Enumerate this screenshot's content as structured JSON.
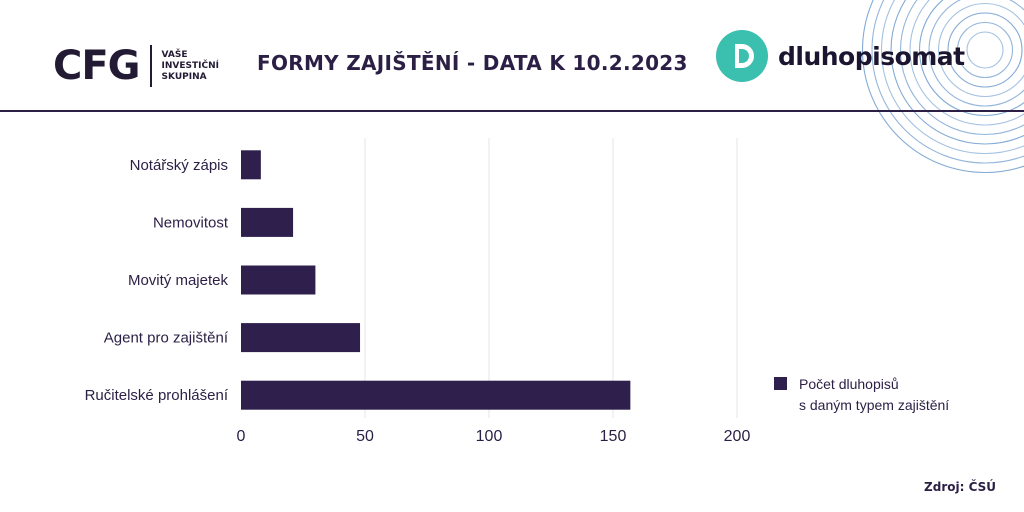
{
  "header": {
    "logo_mark": "CFG",
    "logo_tagline": [
      "VAŠE",
      "INVESTIČNÍ",
      "SKUPINA"
    ],
    "title": "FORMY ZAJIŠTĚNÍ - DATA K 10.2.2023",
    "brand_name": "dluhopisomat"
  },
  "colors": {
    "bar": "#2e1f4c",
    "text": "#2b1f45",
    "grid": "#e6e6e6",
    "brand_teal": "#3bbfae",
    "deco_circles": "#5a8fc8"
  },
  "chart_data": {
    "type": "bar",
    "orientation": "horizontal",
    "categories": [
      "Notářský zápis",
      "Nemovitost",
      "Movitý majetek",
      "Agent pro zajištění",
      "Ručitelské prohlášení"
    ],
    "series": [
      {
        "values": [
          8,
          21,
          30,
          48,
          157
        ]
      }
    ],
    "xlim": [
      0,
      200
    ],
    "xticks": [
      0,
      50,
      100,
      150,
      200
    ],
    "grid": true,
    "legend_position": "bottom-right"
  },
  "legend": {
    "lines": [
      "Počet dluhopisů",
      "s daným typem zajištění"
    ]
  },
  "footer": {
    "source": "Zdroj: ČSÚ"
  }
}
